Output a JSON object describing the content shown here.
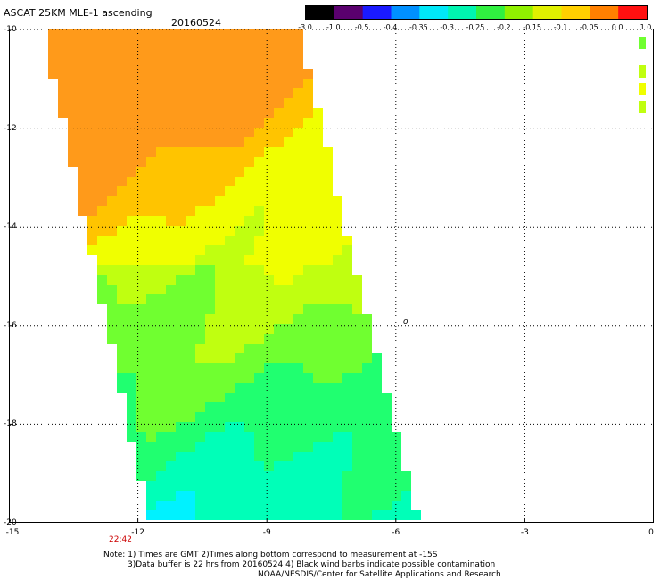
{
  "header": {
    "title": "ASCAT 25KM MLE-1 ascending",
    "date": "20160524"
  },
  "colorbar": {
    "labels": [
      "-3.0",
      "-1.0",
      "-0.5",
      "-0.4",
      "-0.35",
      "-0.3",
      "-0.25",
      "-0.2",
      "-0.15",
      "-0.1",
      "-0.05",
      "0.0",
      "1.0"
    ],
    "colors": [
      "#000000",
      "#5a006e",
      "#1a1aff",
      "#0090ff",
      "#00e8f8",
      "#00f5b0",
      "#30f040",
      "#90f000",
      "#e0f000",
      "#ffd000",
      "#ff8000",
      "#ff1010"
    ]
  },
  "map": {
    "y_axis_labels": [
      "-10",
      "-12",
      "-14",
      "-16",
      "-18",
      "-20"
    ],
    "x_axis_labels": [
      "-15",
      "-12",
      "-9",
      "-6",
      "-3",
      "0"
    ],
    "annotation": "o",
    "time_label": "22:42"
  },
  "notes": {
    "line1": "Note: 1) Times are GMT 2)Times along bottom correspond to measurement at -15S",
    "line2": "3)Data buffer is 22 hrs from 20160524 4) Black wind barbs indicate possible contamination",
    "line3": "NOAA/NESDIS/Center for Satellite Applications and Research"
  }
}
